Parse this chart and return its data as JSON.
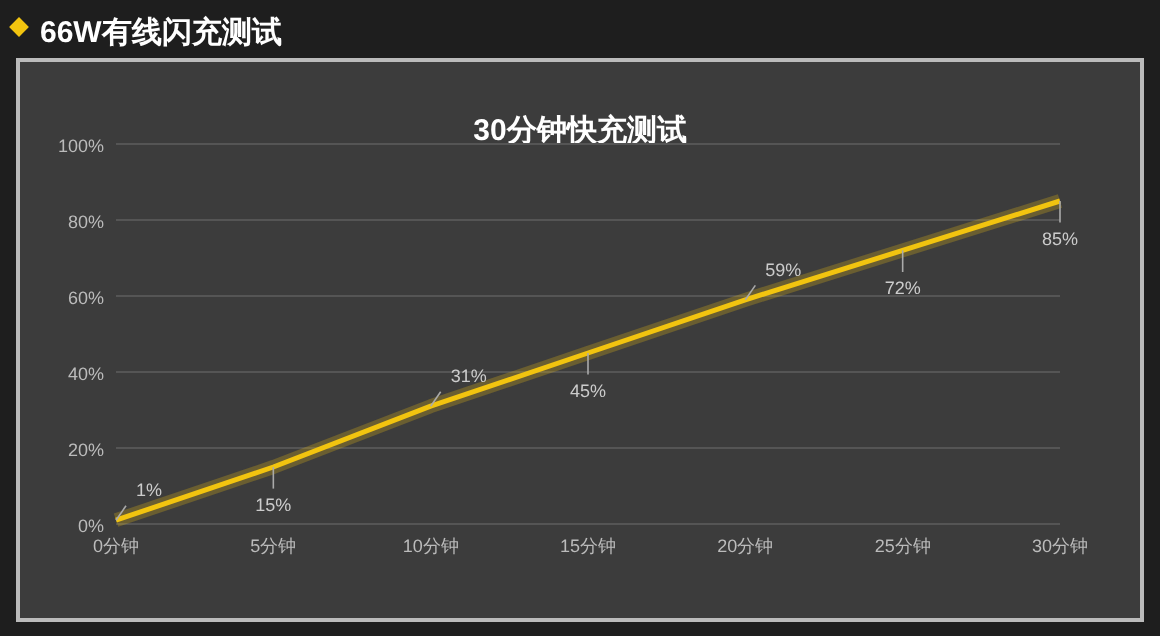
{
  "chart_data": {
    "type": "line",
    "title": "66W有线闪充测试",
    "subtitle": "30分钟快充测试",
    "categories": [
      "0分钟",
      "5分钟",
      "10分钟",
      "15分钟",
      "20分钟",
      "25分钟",
      "30分钟"
    ],
    "series": [
      {
        "color": "#f2c40f",
        "values": [
          1,
          15,
          31,
          45,
          59,
          72,
          85
        ],
        "value_labels": [
          "1%",
          "15%",
          "31%",
          "45%",
          "59%",
          "72%",
          "85%"
        ]
      }
    ],
    "ylim": [
      0,
      100
    ],
    "yticks": [
      {
        "value": 0,
        "label": "0%"
      },
      {
        "value": 20,
        "label": "20%"
      },
      {
        "value": 40,
        "label": "40%"
      },
      {
        "value": 60,
        "label": "60%"
      },
      {
        "value": 80,
        "label": "80%"
      },
      {
        "value": 100,
        "label": "100%"
      }
    ],
    "grid": "y",
    "marker": "none",
    "line_style": "solid"
  }
}
